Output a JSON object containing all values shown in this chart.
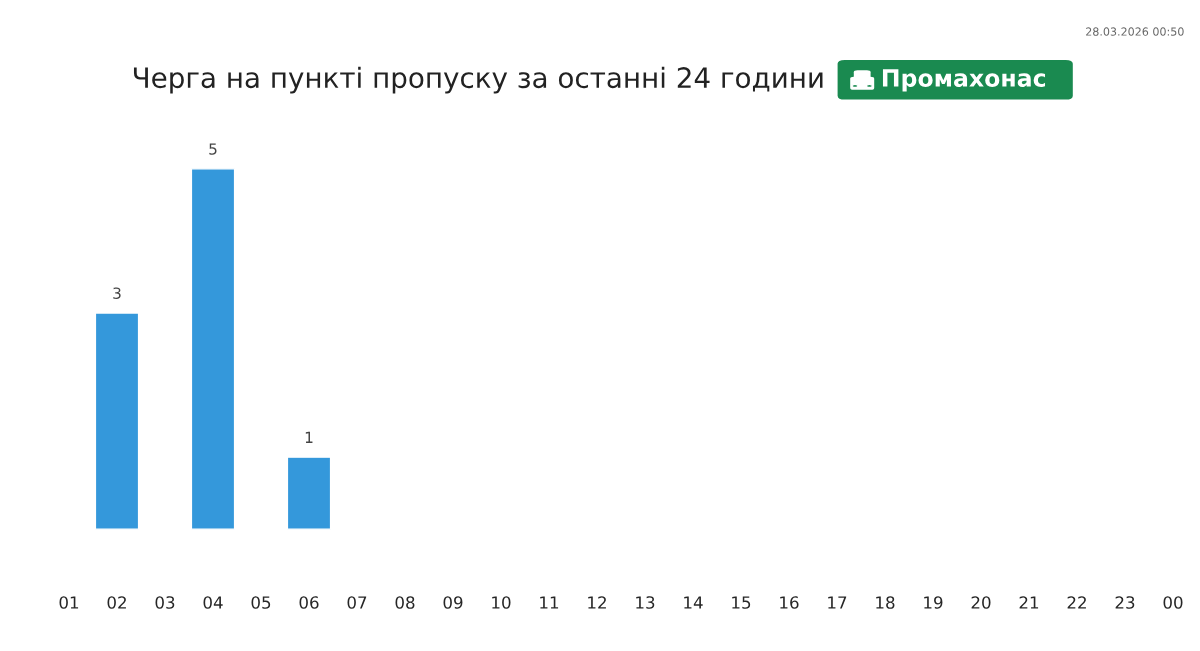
{
  "chart_data": {
    "type": "bar",
    "title": "Черга на пункті пропуску за останні 24 години",
    "subtitle": "Промахонас",
    "annotations": [
      "28.03.2026 00:50"
    ],
    "categories": [
      "01",
      "02",
      "03",
      "04",
      "05",
      "06",
      "07",
      "08",
      "09",
      "10",
      "11",
      "12",
      "13",
      "14",
      "15",
      "16",
      "17",
      "18",
      "19",
      "20",
      "21",
      "22",
      "23",
      "00"
    ],
    "values": [
      null,
      3,
      null,
      5,
      null,
      1,
      null,
      null,
      null,
      null,
      null,
      null,
      null,
      null,
      null,
      null,
      null,
      null,
      null,
      null,
      null,
      null,
      null,
      null
    ],
    "value_labels": [
      null,
      "3",
      null,
      "5",
      null,
      "1",
      null,
      null,
      null,
      null,
      null,
      null,
      null,
      null,
      null,
      null,
      null,
      null,
      null,
      null,
      null,
      null,
      null,
      null
    ],
    "color": "#3498db"
  }
}
